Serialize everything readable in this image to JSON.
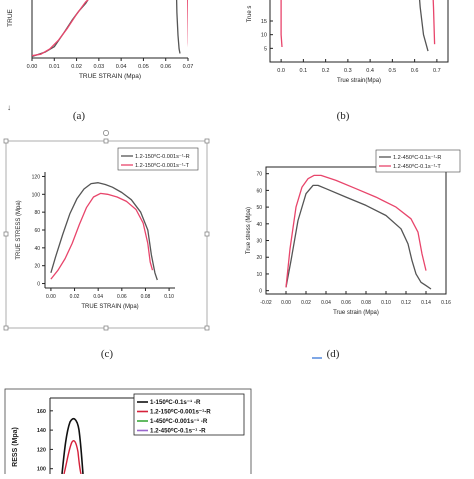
{
  "chart_data": [
    {
      "panel": "a",
      "caption": "(a)",
      "type": "line",
      "xlabel": "TRUE STRAIN (Mpa)",
      "ylabel": "TRUE",
      "xlim": [
        0.0,
        0.07
      ],
      "ylim": [
        0,
        90
      ],
      "xticks": [
        "0.00",
        "0.01",
        "0.02",
        "0.03",
        "0.04",
        "0.05",
        "0.06",
        "0.07"
      ],
      "colors": [
        "#555555",
        "#e8456b"
      ],
      "series": [
        {
          "x": [
            0.0,
            0.002,
            0.006,
            0.01,
            0.014,
            0.018,
            0.021,
            0.024,
            0.028
          ],
          "y": [
            2,
            4,
            8,
            15,
            32,
            50,
            62,
            72,
            90
          ]
        },
        {
          "x": [
            0.0,
            0.004,
            0.008,
            0.012,
            0.016,
            0.02,
            0.024,
            0.03
          ],
          "y": [
            3,
            5,
            12,
            24,
            40,
            58,
            74,
            90
          ]
        },
        {
          "x": [
            0.0648,
            0.065,
            0.0655,
            0.066,
            0.0664
          ],
          "y": [
            90,
            60,
            30,
            12,
            6
          ]
        },
        {
          "x": [
            0.0698,
            0.07,
            0.0702,
            0.0704
          ],
          "y": [
            90,
            55,
            20,
            8
          ]
        }
      ],
      "series_colors": [
        0,
        1,
        0,
        1
      ]
    },
    {
      "panel": "b",
      "caption": "(b)",
      "type": "line",
      "xlabel": "True strain(Mpa)",
      "ylabel": "True s",
      "xlim": [
        -0.05,
        0.75
      ],
      "ylim": [
        0,
        30
      ],
      "xticks": [
        "0.0",
        "0.1",
        "0.2",
        "0.3",
        "0.4",
        "0.5",
        "0.6",
        "0.7"
      ],
      "xtick_values": [
        0.0,
        0.1,
        0.2,
        0.3,
        0.4,
        0.5,
        0.6,
        0.7
      ],
      "yticks": [
        "5",
        "10",
        "15"
      ],
      "ytick_values": [
        5,
        10,
        15
      ],
      "colors": [
        "#555555",
        "#e8456b"
      ],
      "series": [
        {
          "x": [
            0.0,
            0.0,
            0.004
          ],
          "y": [
            30,
            10,
            5.5
          ]
        },
        {
          "x": [
            0.615,
            0.625,
            0.64,
            0.66
          ],
          "y": [
            30,
            20,
            10,
            4
          ]
        },
        {
          "x": [
            0.68,
            0.685,
            0.69
          ],
          "y": [
            30,
            20,
            6.5
          ]
        }
      ],
      "series_colors": [
        1,
        0,
        1
      ]
    },
    {
      "panel": "c",
      "caption": "(c)",
      "type": "line",
      "xlabel": "TRUE STRAIN (Mpa)",
      "ylabel": "TRUE STRESS (Mpa)",
      "xlim": [
        -0.005,
        0.105
      ],
      "ylim": [
        -5,
        125
      ],
      "xticks": [
        "0.00",
        "0.02",
        "0.04",
        "0.06",
        "0.08",
        "0.10"
      ],
      "xtick_values": [
        0.0,
        0.02,
        0.04,
        0.06,
        0.08,
        0.1
      ],
      "yticks": [
        "0",
        "20",
        "40",
        "60",
        "80",
        "100",
        "120"
      ],
      "ytick_values": [
        0,
        20,
        40,
        60,
        80,
        100,
        120
      ],
      "legend": [
        "1.2-150⁰C-0.001s⁻¹-R",
        "1.2-150⁰C-0.001s⁻¹-T"
      ],
      "legend_position": "top-right",
      "series": [
        {
          "name": "1.2-150⁰C-0.001s⁻¹-R",
          "color": "#555555",
          "x": [
            0.0,
            0.004,
            0.01,
            0.016,
            0.022,
            0.028,
            0.034,
            0.04,
            0.046,
            0.052,
            0.06,
            0.068,
            0.076,
            0.082,
            0.085,
            0.088,
            0.09
          ],
          "y": [
            12,
            30,
            55,
            78,
            95,
            106,
            112,
            113,
            111,
            108,
            102,
            94,
            80,
            60,
            32,
            12,
            4
          ]
        },
        {
          "name": "1.2-150⁰C-0.001s⁻¹-T",
          "color": "#e8456b",
          "x": [
            0.0,
            0.006,
            0.012,
            0.018,
            0.024,
            0.03,
            0.036,
            0.042,
            0.048,
            0.056,
            0.064,
            0.072,
            0.078,
            0.082,
            0.084,
            0.086
          ],
          "y": [
            5,
            15,
            28,
            45,
            66,
            85,
            97,
            101,
            100,
            97,
            92,
            83,
            68,
            45,
            24,
            15
          ]
        }
      ]
    },
    {
      "panel": "d",
      "caption": "(d)",
      "type": "line",
      "xlabel": "True strain (Mpa)",
      "ylabel": "True stress (Mpa)",
      "xlim": [
        -0.02,
        0.16
      ],
      "ylim": [
        -2,
        74
      ],
      "xticks": [
        "-0.02",
        "0.00",
        "0.02",
        "0.04",
        "0.06",
        "0.08",
        "0.10",
        "0.12",
        "0.14",
        "0.16"
      ],
      "xtick_values": [
        -0.02,
        0.0,
        0.02,
        0.04,
        0.06,
        0.08,
        0.1,
        0.12,
        0.14,
        0.16
      ],
      "yticks": [
        "0",
        "10",
        "20",
        "30",
        "40",
        "50",
        "60",
        "70"
      ],
      "ytick_values": [
        0,
        10,
        20,
        30,
        40,
        50,
        60,
        70
      ],
      "legend": [
        "1.2-450⁰C-0.1s⁻¹-R",
        "1.2-450⁰C-0.1s⁻¹-T"
      ],
      "legend_position": "top-right",
      "series": [
        {
          "name": "1.2-450⁰C-0.1s⁻¹-R",
          "color": "#555555",
          "x": [
            0.0,
            0.005,
            0.012,
            0.02,
            0.027,
            0.032,
            0.04,
            0.06,
            0.08,
            0.1,
            0.115,
            0.122,
            0.126,
            0.13,
            0.135,
            0.14,
            0.145
          ],
          "y": [
            2,
            18,
            42,
            58,
            63,
            63,
            61,
            56,
            51,
            45,
            37,
            28,
            18,
            10,
            5,
            3,
            1
          ]
        },
        {
          "name": "1.2-450⁰C-0.1s⁻¹-T",
          "color": "#e8456b",
          "x": [
            0.0,
            0.004,
            0.01,
            0.016,
            0.022,
            0.028,
            0.035,
            0.05,
            0.07,
            0.09,
            0.11,
            0.125,
            0.132,
            0.136,
            0.14
          ],
          "y": [
            2,
            25,
            50,
            62,
            67,
            69,
            69,
            66,
            61,
            56,
            50,
            43,
            35,
            22,
            12
          ]
        }
      ]
    },
    {
      "panel": "e",
      "type": "line",
      "ylabel": "RESS (Mpa)",
      "ylim": [
        80,
        165
      ],
      "yticks": [
        "160",
        "140",
        "120",
        "100",
        "80"
      ],
      "ytick_values": [
        160,
        140,
        120,
        100,
        80
      ],
      "legend": [
        "1-150⁰C-0.1s⁻¹   -R",
        "1.2-150⁰C-0.001s⁻¹-R",
        "1-450⁰C-0.001s⁻¹   -R",
        "1.2-450⁰C-0.1s⁻¹   -R"
      ],
      "legend_position": "top-right",
      "series": [
        {
          "name": "1-150⁰C-0.1s⁻¹   -R",
          "color": "#111111"
        },
        {
          "name": "1.2-150⁰C-0.001s⁻¹-R",
          "color": "#d6213a"
        },
        {
          "name": "1-450⁰C-0.001s⁻¹   -R",
          "color": "#3aa83a"
        },
        {
          "name": "1.2-450⁰C-0.1s⁻¹   -R",
          "color": "#9966cc"
        }
      ]
    }
  ],
  "decor": {
    "arrow_glyph": "↓"
  }
}
